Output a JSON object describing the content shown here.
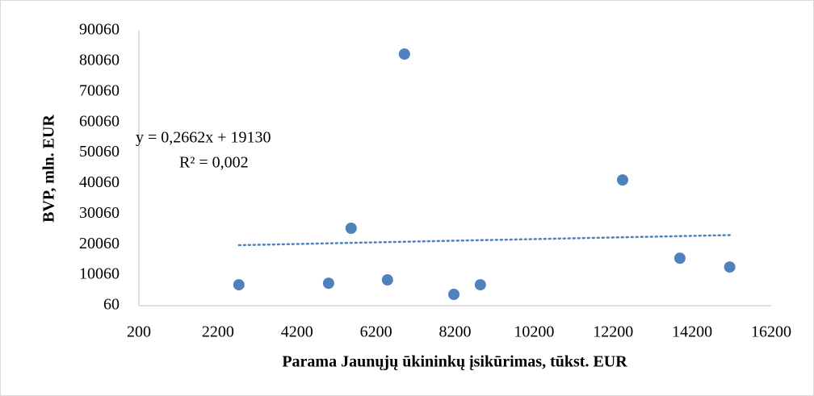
{
  "chart_data": {
    "type": "scatter",
    "x_label": "Parama Jaunųjų ūkininkų įsikūrimas, tūkst. EUR",
    "y_label": "BVP, mln. EUR",
    "series": [
      {
        "color": "#4f81bd",
        "x": [
          2730,
          5000,
          5570,
          6490,
          6920,
          8170,
          8840,
          12440,
          13890,
          15150
        ],
        "values": [
          6900,
          7400,
          25400,
          8500,
          82400,
          3750,
          6900,
          41200,
          15600,
          12700
        ]
      }
    ],
    "trendline": {
      "slope": 0.2662,
      "intercept": 19130,
      "color": "#4f81bd",
      "equation": "y = 0,2662x + 19130",
      "r2": "R² = 0,002"
    },
    "xlim": [
      200,
      16200
    ],
    "xticks": [
      200,
      2200,
      4200,
      6200,
      8200,
      10200,
      12200,
      14200,
      16200
    ],
    "ylim": [
      60,
      90060
    ],
    "yticks": [
      60,
      10060,
      20060,
      30060,
      40060,
      50060,
      60060,
      70060,
      80060,
      90060
    ],
    "grid": false
  }
}
